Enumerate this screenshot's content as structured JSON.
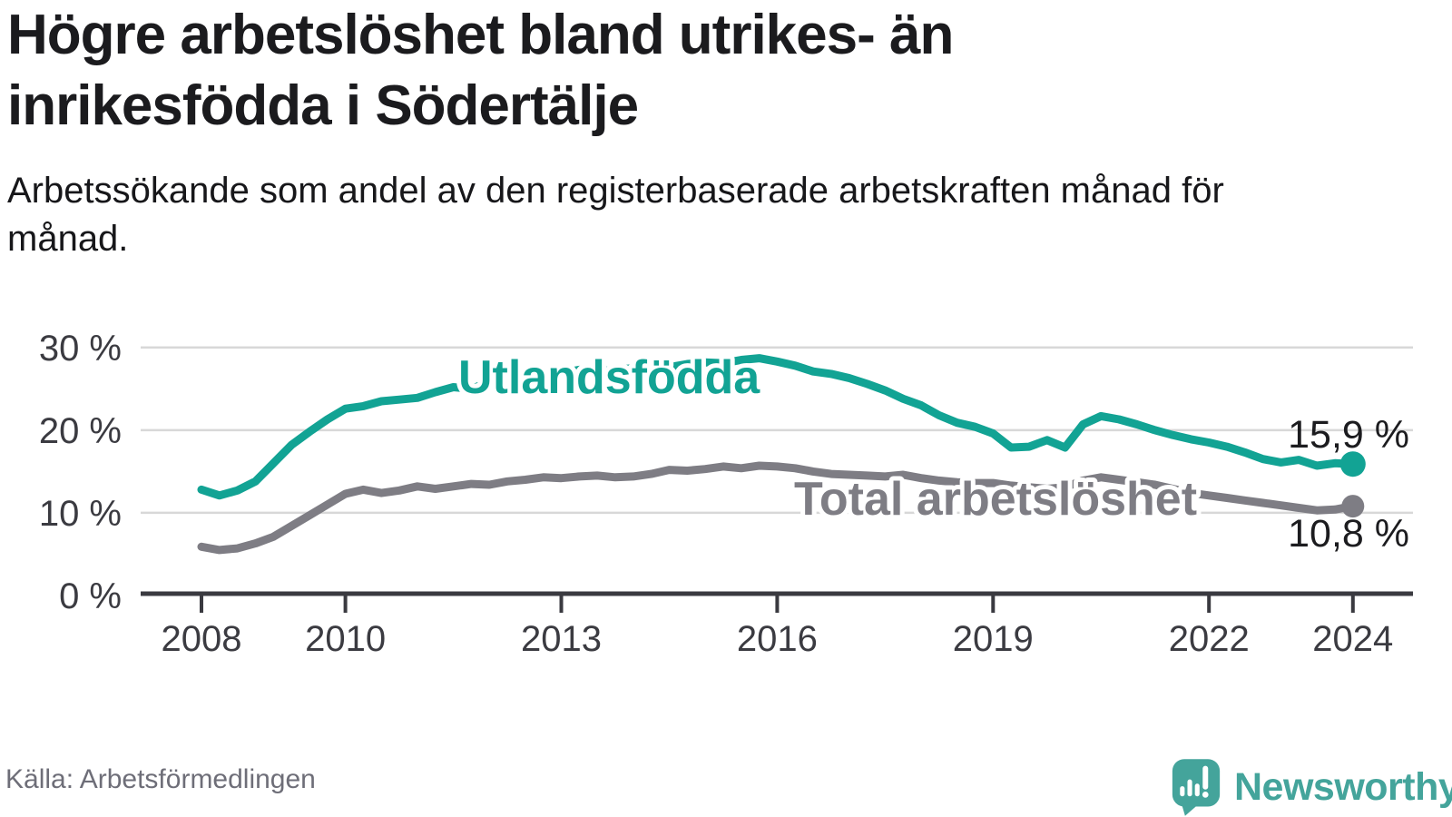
{
  "header": {
    "title": "Högre arbetslöshet bland utrikes- än inrikesfödda i Södertälje",
    "subtitle": "Arbetssökande som andel av den registerbaserade arbetskraften månad för månad."
  },
  "footer": {
    "source": "Källa: Arbetsförmedlingen",
    "brand": "Newsworthy",
    "brand_icon": "newsworthy-speech-bubble-chart-icon",
    "brand_color": "#44a49b"
  },
  "chart_data": {
    "type": "line",
    "title": "Högre arbetslöshet bland utrikes- än inrikesfödda i Södertälje",
    "unit": "%",
    "grid": "horizontal",
    "legend_position": "inline-labels",
    "x_axis": {
      "ticks": [
        2008,
        2010,
        2013,
        2016,
        2019,
        2022,
        2024
      ],
      "labels": [
        "2008",
        "2010",
        "2013",
        "2016",
        "2019",
        "2022",
        "2024"
      ],
      "range": [
        2007.2,
        2024.8
      ]
    },
    "y_axis": {
      "ticks": [
        0,
        10,
        20,
        30
      ],
      "labels": [
        "0 %",
        "10 %",
        "20 %",
        "30 %"
      ],
      "range": [
        0,
        33
      ]
    },
    "x": [
      2008.0,
      2008.25,
      2008.5,
      2008.75,
      2009.0,
      2009.25,
      2009.5,
      2009.75,
      2010.0,
      2010.25,
      2010.5,
      2010.75,
      2011.0,
      2011.25,
      2011.5,
      2011.75,
      2012.0,
      2012.25,
      2012.5,
      2012.75,
      2013.0,
      2013.25,
      2013.5,
      2013.75,
      2014.0,
      2014.25,
      2014.5,
      2014.75,
      2015.0,
      2015.25,
      2015.5,
      2015.75,
      2016.0,
      2016.25,
      2016.5,
      2016.75,
      2017.0,
      2017.25,
      2017.5,
      2017.75,
      2018.0,
      2018.25,
      2018.5,
      2018.75,
      2019.0,
      2019.25,
      2019.5,
      2019.75,
      2020.0,
      2020.25,
      2020.5,
      2020.75,
      2021.0,
      2021.25,
      2021.5,
      2021.75,
      2022.0,
      2022.25,
      2022.5,
      2022.75,
      2023.0,
      2023.25,
      2023.5,
      2023.75,
      2024.0
    ],
    "series": [
      {
        "name": "Utlandsfödda",
        "color": "#12a394",
        "end_label": "15,9 %",
        "end_value": 15.9,
        "values": [
          12.8,
          12.1,
          12.7,
          13.8,
          16.0,
          18.2,
          19.8,
          21.3,
          22.6,
          22.9,
          23.5,
          23.7,
          23.9,
          24.6,
          25.2,
          25.0,
          25.8,
          26.2,
          26.0,
          26.5,
          26.9,
          27.3,
          27.1,
          27.3,
          27.5,
          27.7,
          27.6,
          28.0,
          28.2,
          28.1,
          28.5,
          28.7,
          28.3,
          27.8,
          27.1,
          26.8,
          26.3,
          25.6,
          24.8,
          23.8,
          23.0,
          21.8,
          20.9,
          20.4,
          19.6,
          17.9,
          18.0,
          18.8,
          17.9,
          20.7,
          21.7,
          21.3,
          20.7,
          20.0,
          19.4,
          18.9,
          18.5,
          18.0,
          17.3,
          16.5,
          16.1,
          16.4,
          15.7,
          16.0,
          15.9
        ]
      },
      {
        "name": "Total arbetslöshet",
        "color": "#7e7d84",
        "end_label": "10,8 %",
        "end_value": 10.8,
        "values": [
          5.9,
          5.5,
          5.7,
          6.3,
          7.1,
          8.4,
          9.7,
          11.0,
          12.3,
          12.8,
          12.4,
          12.7,
          13.2,
          12.9,
          13.2,
          13.5,
          13.4,
          13.8,
          14.0,
          14.3,
          14.2,
          14.4,
          14.5,
          14.3,
          14.4,
          14.7,
          15.2,
          15.1,
          15.3,
          15.6,
          15.4,
          15.7,
          15.6,
          15.4,
          15.0,
          14.7,
          14.6,
          14.5,
          14.4,
          14.6,
          14.2,
          13.9,
          13.7,
          13.6,
          13.6,
          13.3,
          13.1,
          12.9,
          13.1,
          13.9,
          14.3,
          14.0,
          13.7,
          13.4,
          12.9,
          12.4,
          12.1,
          11.8,
          11.5,
          11.2,
          10.9,
          10.6,
          10.3,
          10.4,
          10.8
        ]
      }
    ]
  }
}
